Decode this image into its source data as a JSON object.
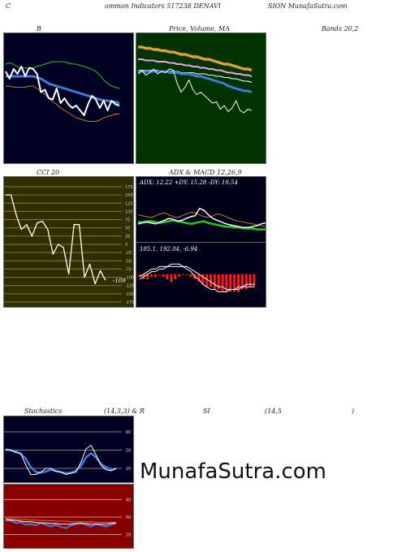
{
  "header": {
    "left": "C",
    "part1": "ommon  Indicators 517238  DENAVI",
    "part2": "SION  MunafaSutra.com"
  },
  "titles": {
    "bands_a": "B",
    "bands_b": "Bands 20,2",
    "price": "Price,  Volume,  MA",
    "cci": "CCI 20",
    "adx": "ADX  & MACD 12,26,9",
    "stoch_a": "Stochastics",
    "stoch_b": "(14,3,3) & R",
    "rsi_a": "SI",
    "rsi_b": "(14,5",
    "rsi_c": ")"
  },
  "colors": {
    "bands_bg": "#000022",
    "price_bg": "#003300",
    "cci_bg": "#2e2e00",
    "adx_bg": "#000018",
    "stoch_bg": "#000022",
    "rsi_bg": "#8a0000",
    "white": "#ffffff",
    "blue": "#3a7fe0",
    "green": "#22cc22",
    "orange": "#cc7a1a",
    "gold": "#e0a030",
    "pink": "#f0a0e0",
    "red": "#ff1a1a",
    "grid_cci": "#8a7a20"
  },
  "chart_data": [
    {
      "type": "line",
      "name": "bollinger",
      "ylim": [
        0,
        100
      ],
      "x": [
        0,
        1,
        2,
        3,
        4,
        5,
        6,
        7,
        8,
        9,
        10,
        11,
        12,
        13,
        14,
        15,
        16,
        17,
        18,
        19,
        20,
        21,
        22,
        23,
        24,
        25,
        26,
        27,
        28,
        29
      ],
      "series": [
        {
          "role": "upper",
          "color": "green",
          "values": [
            78,
            79,
            78,
            76,
            75,
            75,
            74,
            75,
            76,
            77,
            78,
            79,
            80,
            80,
            80,
            80,
            79,
            78,
            78,
            77,
            76,
            75,
            74,
            72,
            69,
            65,
            62,
            60,
            59,
            58
          ]
        },
        {
          "role": "middle",
          "color": "blue",
          "values": [
            68,
            68,
            68,
            68,
            68,
            68,
            68,
            68,
            67,
            66,
            64,
            62,
            61,
            60,
            59,
            58,
            57,
            56,
            55,
            54,
            53,
            52,
            51,
            50,
            49,
            48,
            48,
            47,
            47,
            46
          ]
        },
        {
          "role": "lower",
          "color": "orange",
          "values": [
            60,
            60,
            59,
            59,
            59,
            59,
            60,
            60,
            58,
            56,
            53,
            50,
            47,
            45,
            42,
            40,
            38,
            36,
            34,
            33,
            32,
            31,
            31,
            31,
            32,
            34,
            35,
            36,
            37,
            37
          ]
        },
        {
          "role": "close",
          "color": "white",
          "values": [
            72,
            66,
            74,
            70,
            76,
            68,
            75,
            74,
            70,
            55,
            57,
            50,
            49,
            58,
            46,
            50,
            45,
            42,
            44,
            40,
            36,
            45,
            52,
            49,
            42,
            48,
            40,
            48,
            45,
            44
          ]
        }
      ]
    },
    {
      "type": "line",
      "name": "price-ma",
      "ylim": [
        0,
        100
      ],
      "x": [
        0,
        1,
        2,
        3,
        4,
        5,
        6,
        7,
        8,
        9,
        10,
        11,
        12,
        13,
        14,
        15,
        16,
        17,
        18,
        19,
        20,
        21,
        22,
        23,
        24,
        25,
        26,
        27,
        28,
        29
      ],
      "series": [
        {
          "role": "ma-long",
          "color": "gold",
          "values": [
            92,
            92,
            91,
            91,
            90,
            90,
            89,
            89,
            88,
            88,
            87,
            86,
            86,
            85,
            84,
            84,
            83,
            82,
            82,
            81,
            80,
            79,
            78,
            78,
            77,
            76,
            75,
            74,
            74,
            73
          ]
        },
        {
          "role": "ma-pink",
          "color": "pink",
          "values": [
            82,
            82,
            81,
            81,
            81,
            80,
            80,
            80,
            79,
            79,
            78,
            78,
            77,
            77,
            76,
            76,
            75,
            75,
            74,
            74,
            73,
            73,
            72,
            71,
            71,
            70,
            70,
            69,
            69,
            68
          ]
        },
        {
          "role": "ma-thin",
          "color": "white",
          "values": [
            73,
            73,
            73,
            73,
            73,
            73,
            72,
            72,
            72,
            72,
            72,
            71,
            71,
            71,
            71,
            70,
            70,
            70,
            69,
            69,
            68,
            68,
            67,
            67,
            66,
            66,
            65,
            64,
            64,
            63
          ]
        },
        {
          "role": "ma-blue",
          "color": "blue",
          "values": [
            72,
            72,
            72,
            72,
            72,
            72,
            72,
            72,
            71,
            71,
            71,
            70,
            70,
            70,
            69,
            68,
            68,
            67,
            66,
            65,
            64,
            63,
            62,
            60,
            59,
            58,
            57,
            56,
            56,
            55
          ]
        },
        {
          "role": "close",
          "color": "white",
          "values": [
            70,
            73,
            69,
            71,
            74,
            70,
            72,
            71,
            74,
            73,
            62,
            55,
            59,
            65,
            57,
            53,
            55,
            52,
            49,
            46,
            47,
            41,
            44,
            39,
            42,
            48,
            40,
            38,
            41,
            40
          ]
        }
      ]
    },
    {
      "type": "line",
      "name": "cci",
      "ylim": [
        -175,
        175
      ],
      "gridlines": [
        175,
        150,
        125,
        100,
        75,
        50,
        25,
        0,
        -25,
        -50,
        -75,
        -100,
        -125,
        -150,
        -175
      ],
      "x": [
        0,
        1,
        2,
        3,
        4,
        5,
        6,
        7,
        8,
        9,
        10,
        11,
        12,
        13,
        14,
        15,
        16,
        17,
        18,
        19
      ],
      "series": [
        {
          "role": "cci",
          "color": "white",
          "values": [
            150,
            150,
            90,
            45,
            60,
            25,
            65,
            70,
            45,
            -30,
            0,
            -10,
            -90,
            60,
            60,
            -100,
            -60,
            -120,
            -80,
            -109
          ]
        }
      ],
      "last_value": "-109"
    },
    {
      "type": "line",
      "name": "adx",
      "ylim": [
        0,
        50
      ],
      "readout": "ADX: 12.22  +DY: 15.28  -DY: 19.54",
      "x": [
        0,
        1,
        2,
        3,
        4,
        5,
        6,
        7,
        8,
        9,
        10,
        11,
        12,
        13,
        14,
        15,
        16,
        17,
        18,
        19,
        20,
        21,
        22,
        23,
        24,
        25,
        26,
        27,
        28,
        29
      ],
      "series": [
        {
          "role": "adx",
          "color": "green",
          "values": [
            20,
            20,
            21,
            21,
            20,
            19,
            20,
            21,
            22,
            21,
            20,
            19,
            18,
            19,
            20,
            21,
            19,
            18,
            17,
            16,
            15,
            15,
            14,
            14,
            13,
            13,
            13,
            12,
            12,
            12
          ]
        },
        {
          "role": "plus-di",
          "color": "orange",
          "values": [
            28,
            27,
            26,
            25,
            27,
            29,
            30,
            28,
            26,
            25,
            27,
            29,
            31,
            30,
            28,
            26,
            25,
            27,
            29,
            28,
            26,
            24,
            22,
            21,
            20,
            19,
            18,
            17,
            16,
            15
          ]
        },
        {
          "role": "minus-di",
          "color": "white",
          "values": [
            18,
            19,
            20,
            19,
            18,
            20,
            22,
            24,
            23,
            21,
            22,
            24,
            26,
            27,
            35,
            33,
            28,
            24,
            22,
            20,
            18,
            17,
            16,
            15,
            14,
            14,
            15,
            16,
            18,
            19
          ]
        }
      ]
    },
    {
      "type": "bar",
      "name": "macd",
      "ylim": [
        -10,
        6
      ],
      "readout": "185.1,  192.04,  -6.94",
      "x": [
        0,
        1,
        2,
        3,
        4,
        5,
        6,
        7,
        8,
        9,
        10,
        11,
        12,
        13,
        14,
        15,
        16,
        17,
        18,
        19,
        20,
        21,
        22,
        23,
        24,
        25,
        26,
        27,
        28,
        29
      ],
      "series": [
        {
          "role": "histogram",
          "color": "red",
          "values": [
            -1,
            -2,
            -2,
            -1,
            -1,
            0,
            -1,
            -2,
            -3,
            -2,
            -1,
            0,
            0,
            -1,
            -2,
            -3,
            -4,
            -5,
            -5,
            -6,
            -6,
            -7,
            -7,
            -7,
            -7,
            -7,
            -6,
            -6,
            -5,
            -5
          ]
        },
        {
          "role": "macd",
          "color": "white",
          "values": [
            -1,
            0,
            1,
            2,
            2,
            3,
            3,
            3,
            4,
            4,
            4,
            3,
            2,
            1,
            -1,
            -2,
            -4,
            -5,
            -6,
            -6,
            -7,
            -7,
            -7,
            -6,
            -6,
            -5,
            -5,
            -4,
            -4,
            -4
          ]
        },
        {
          "role": "signal",
          "color": "white",
          "values": [
            -2,
            -1,
            0,
            1,
            1,
            2,
            2,
            3,
            3,
            3,
            3,
            3,
            3,
            2,
            1,
            0,
            -1,
            -2,
            -3,
            -4,
            -5,
            -5,
            -6,
            -6,
            -6,
            -6,
            -5,
            -5,
            -5,
            -5
          ]
        }
      ]
    },
    {
      "type": "line",
      "name": "stochastics",
      "ylim": [
        0,
        100
      ],
      "gridlines": [
        80,
        50,
        20
      ],
      "x": [
        0,
        1,
        2,
        3,
        4,
        5,
        6,
        7,
        8,
        9,
        10,
        11,
        12,
        13,
        14,
        15,
        16,
        17,
        18,
        19,
        20,
        21,
        22
      ],
      "series": [
        {
          "role": "k",
          "color": "blue",
          "values": [
            50,
            50,
            48,
            44,
            36,
            22,
            14,
            13,
            15,
            18,
            16,
            14,
            12,
            13,
            16,
            24,
            38,
            45,
            38,
            27,
            22,
            18,
            20
          ]
        },
        {
          "role": "d",
          "color": "white",
          "values": [
            52,
            50,
            46,
            45,
            26,
            10,
            10,
            14,
            20,
            20,
            15,
            14,
            10,
            12,
            14,
            30,
            52,
            58,
            42,
            25,
            18,
            16,
            20
          ]
        }
      ],
      "labels": [
        "80",
        "50",
        "20"
      ]
    },
    {
      "type": "line",
      "name": "rsi",
      "ylim": [
        0,
        100
      ],
      "gridlines": [
        80,
        50,
        20
      ],
      "x": [
        0,
        1,
        2,
        3,
        4,
        5,
        6,
        7,
        8,
        9,
        10,
        11,
        12,
        13,
        14,
        15,
        16,
        17,
        18,
        19,
        20,
        21,
        22
      ],
      "series": [
        {
          "role": "rsi",
          "color": "blue",
          "values": [
            44,
            44,
            40,
            41,
            37,
            38,
            36,
            40,
            37,
            34,
            37,
            33,
            31,
            36,
            38,
            40,
            37,
            34,
            38,
            36,
            34,
            37,
            40
          ]
        },
        {
          "role": "rsi-smooth",
          "color": "white",
          "values": [
            46,
            45,
            44,
            43,
            42,
            42,
            41,
            40,
            40,
            39,
            39,
            38,
            38,
            38,
            39,
            39,
            39,
            38,
            38,
            38,
            38,
            39,
            40
          ]
        },
        {
          "role": "mid",
          "color": "orange",
          "values": [
            48,
            47,
            47,
            46,
            46,
            45,
            45,
            44,
            44,
            44,
            43,
            43,
            43,
            42,
            42,
            42,
            42,
            42,
            41,
            41,
            41,
            41,
            41
          ]
        }
      ],
      "labels": [
        "80",
        "50",
        "20"
      ]
    }
  ],
  "cci_axis": [
    "175",
    "150",
    "125",
    "100",
    "75",
    "50",
    "25",
    "0",
    "-25",
    "-50",
    "-75",
    "-100",
    "-125",
    "-150",
    "-175"
  ],
  "watermark": "MunafaSutra.com"
}
